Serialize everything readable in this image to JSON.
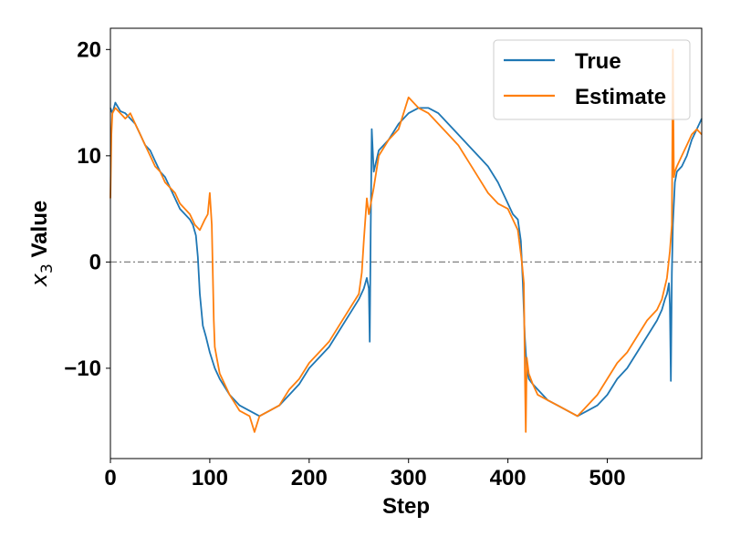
{
  "chart_data": {
    "type": "line",
    "xlabel": "Step",
    "ylabel_var": "x",
    "ylabel_sub": "3",
    "ylabel_suffix": " Value",
    "xlim": [
      0,
      595
    ],
    "ylim": [
      -18.5,
      22
    ],
    "xticks": [
      0,
      100,
      200,
      300,
      400,
      500
    ],
    "xtick_labels": [
      "0",
      "100",
      "200",
      "300",
      "400",
      "500"
    ],
    "yticks": [
      -10,
      0,
      10,
      20
    ],
    "ytick_labels": [
      "−10",
      "0",
      "10",
      "20"
    ],
    "reference_line": {
      "y": 0,
      "style": "dash-dot",
      "color": "#808080"
    },
    "legend_position": "top-right",
    "grid": false,
    "series": [
      {
        "name": "True",
        "color": "#1f77b4",
        "x": [
          0,
          2,
          5,
          10,
          15,
          20,
          25,
          30,
          35,
          40,
          45,
          50,
          55,
          60,
          65,
          70,
          75,
          80,
          83,
          86,
          88,
          90,
          93,
          96,
          100,
          105,
          110,
          120,
          130,
          140,
          150,
          160,
          170,
          180,
          190,
          200,
          210,
          220,
          230,
          240,
          250,
          255,
          258,
          260,
          261,
          262,
          263,
          265,
          270,
          280,
          290,
          300,
          310,
          320,
          330,
          340,
          350,
          360,
          370,
          380,
          390,
          400,
          405,
          410,
          413,
          415,
          417,
          419,
          421,
          425,
          430,
          440,
          450,
          460,
          470,
          480,
          490,
          500,
          510,
          520,
          530,
          540,
          550,
          555,
          558,
          560,
          562,
          563,
          564,
          565,
          566,
          568,
          570,
          575,
          580,
          585,
          590,
          595
        ],
        "y": [
          14.5,
          14.0,
          15.0,
          14.2,
          14.0,
          13.5,
          13.0,
          12.0,
          11.0,
          10.5,
          9.5,
          8.5,
          8.0,
          7.0,
          6.0,
          5.0,
          4.5,
          4.0,
          3.5,
          2.5,
          0.5,
          -3.0,
          -6.0,
          -7.0,
          -8.5,
          -10.0,
          -11.0,
          -12.5,
          -13.5,
          -14.0,
          -14.5,
          -14.0,
          -13.5,
          -12.5,
          -11.5,
          -10.0,
          -9.0,
          -8.0,
          -6.5,
          -5.0,
          -3.5,
          -2.5,
          -1.5,
          -2.5,
          -7.5,
          3.5,
          12.5,
          8.5,
          10.5,
          11.5,
          13.0,
          14.0,
          14.5,
          14.5,
          14.0,
          13.0,
          12.0,
          11.0,
          10.0,
          9.0,
          7.5,
          5.5,
          4.5,
          4.0,
          2.0,
          -2.0,
          -7.0,
          -10.0,
          -11.0,
          -11.5,
          -12.0,
          -13.0,
          -13.5,
          -14.0,
          -14.5,
          -14.0,
          -13.5,
          -12.5,
          -11.0,
          -10.0,
          -8.5,
          -7.0,
          -5.5,
          -4.5,
          -3.5,
          -3.0,
          -2.0,
          -4.0,
          -11.2,
          -1.0,
          3.5,
          7.5,
          8.5,
          9.0,
          10.0,
          11.5,
          12.5,
          13.5
        ]
      },
      {
        "name": "Estimate",
        "color": "#ff7f0e",
        "x": [
          0,
          1,
          2,
          5,
          10,
          15,
          20,
          25,
          30,
          35,
          40,
          45,
          50,
          55,
          60,
          65,
          70,
          75,
          80,
          85,
          90,
          95,
          98,
          100,
          102,
          104,
          105,
          107,
          110,
          120,
          130,
          140,
          145,
          150,
          160,
          170,
          180,
          190,
          200,
          210,
          220,
          230,
          240,
          250,
          253,
          255,
          258,
          260,
          265,
          270,
          280,
          290,
          300,
          310,
          320,
          330,
          340,
          350,
          360,
          370,
          380,
          390,
          400,
          410,
          414,
          416,
          417,
          418,
          419,
          421,
          425,
          430,
          440,
          450,
          460,
          470,
          480,
          490,
          500,
          510,
          520,
          530,
          540,
          550,
          555,
          560,
          563,
          565,
          566,
          567,
          568,
          570,
          575,
          580,
          585,
          590,
          595
        ],
        "y": [
          6.0,
          12.0,
          14.0,
          14.5,
          14.0,
          13.5,
          14.0,
          13.0,
          12.0,
          11.0,
          10.0,
          9.0,
          8.5,
          7.5,
          7.0,
          6.5,
          5.5,
          5.0,
          4.5,
          3.5,
          3.0,
          4.0,
          4.5,
          6.5,
          3.5,
          -5.5,
          -8.0,
          -9.0,
          -10.5,
          -12.5,
          -14.0,
          -14.5,
          -16.0,
          -14.5,
          -14.0,
          -13.5,
          -12.0,
          -11.0,
          -9.5,
          -8.5,
          -7.5,
          -6.0,
          -4.5,
          -3.0,
          -1.0,
          2.0,
          6.0,
          4.5,
          7.0,
          10.0,
          11.5,
          12.5,
          15.5,
          14.5,
          14.0,
          13.0,
          12.0,
          11.0,
          9.5,
          8.0,
          6.5,
          5.5,
          5.0,
          3.0,
          0.0,
          -2.0,
          -10.0,
          -16.0,
          -9.0,
          -10.5,
          -11.5,
          -12.5,
          -13.0,
          -13.5,
          -14.0,
          -14.5,
          -13.5,
          -12.5,
          -11.0,
          -9.5,
          -8.5,
          -7.0,
          -5.5,
          -4.5,
          -3.5,
          -1.5,
          1.0,
          3.5,
          20.0,
          8.0,
          8.5,
          9.0,
          10.0,
          11.0,
          12.0,
          12.5,
          12.0
        ]
      }
    ]
  }
}
